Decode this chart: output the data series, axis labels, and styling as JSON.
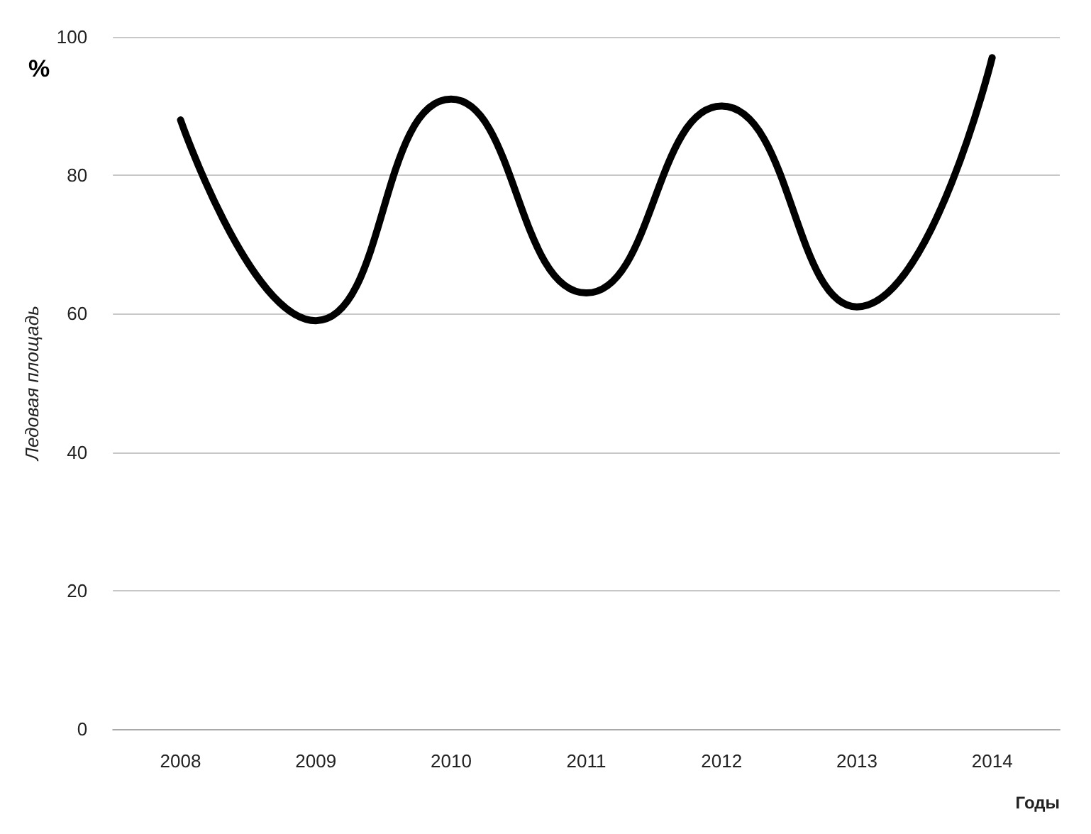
{
  "chart_data": {
    "type": "line",
    "ylabel": "Ледовая площадь",
    "xlabel": "Годы",
    "annotations": [
      "%"
    ],
    "categories": [
      "2008",
      "2009",
      "2010",
      "2011",
      "2012",
      "2013",
      "2014"
    ],
    "series": [
      {
        "color": "#000000",
        "values": [
          88,
          59,
          91,
          63,
          90,
          61,
          97
        ]
      }
    ],
    "ylim": [
      0,
      100
    ],
    "yticks": [
      0,
      20,
      40,
      60,
      80,
      100
    ],
    "grid": "y",
    "marker": "none",
    "line_style": "solid"
  }
}
